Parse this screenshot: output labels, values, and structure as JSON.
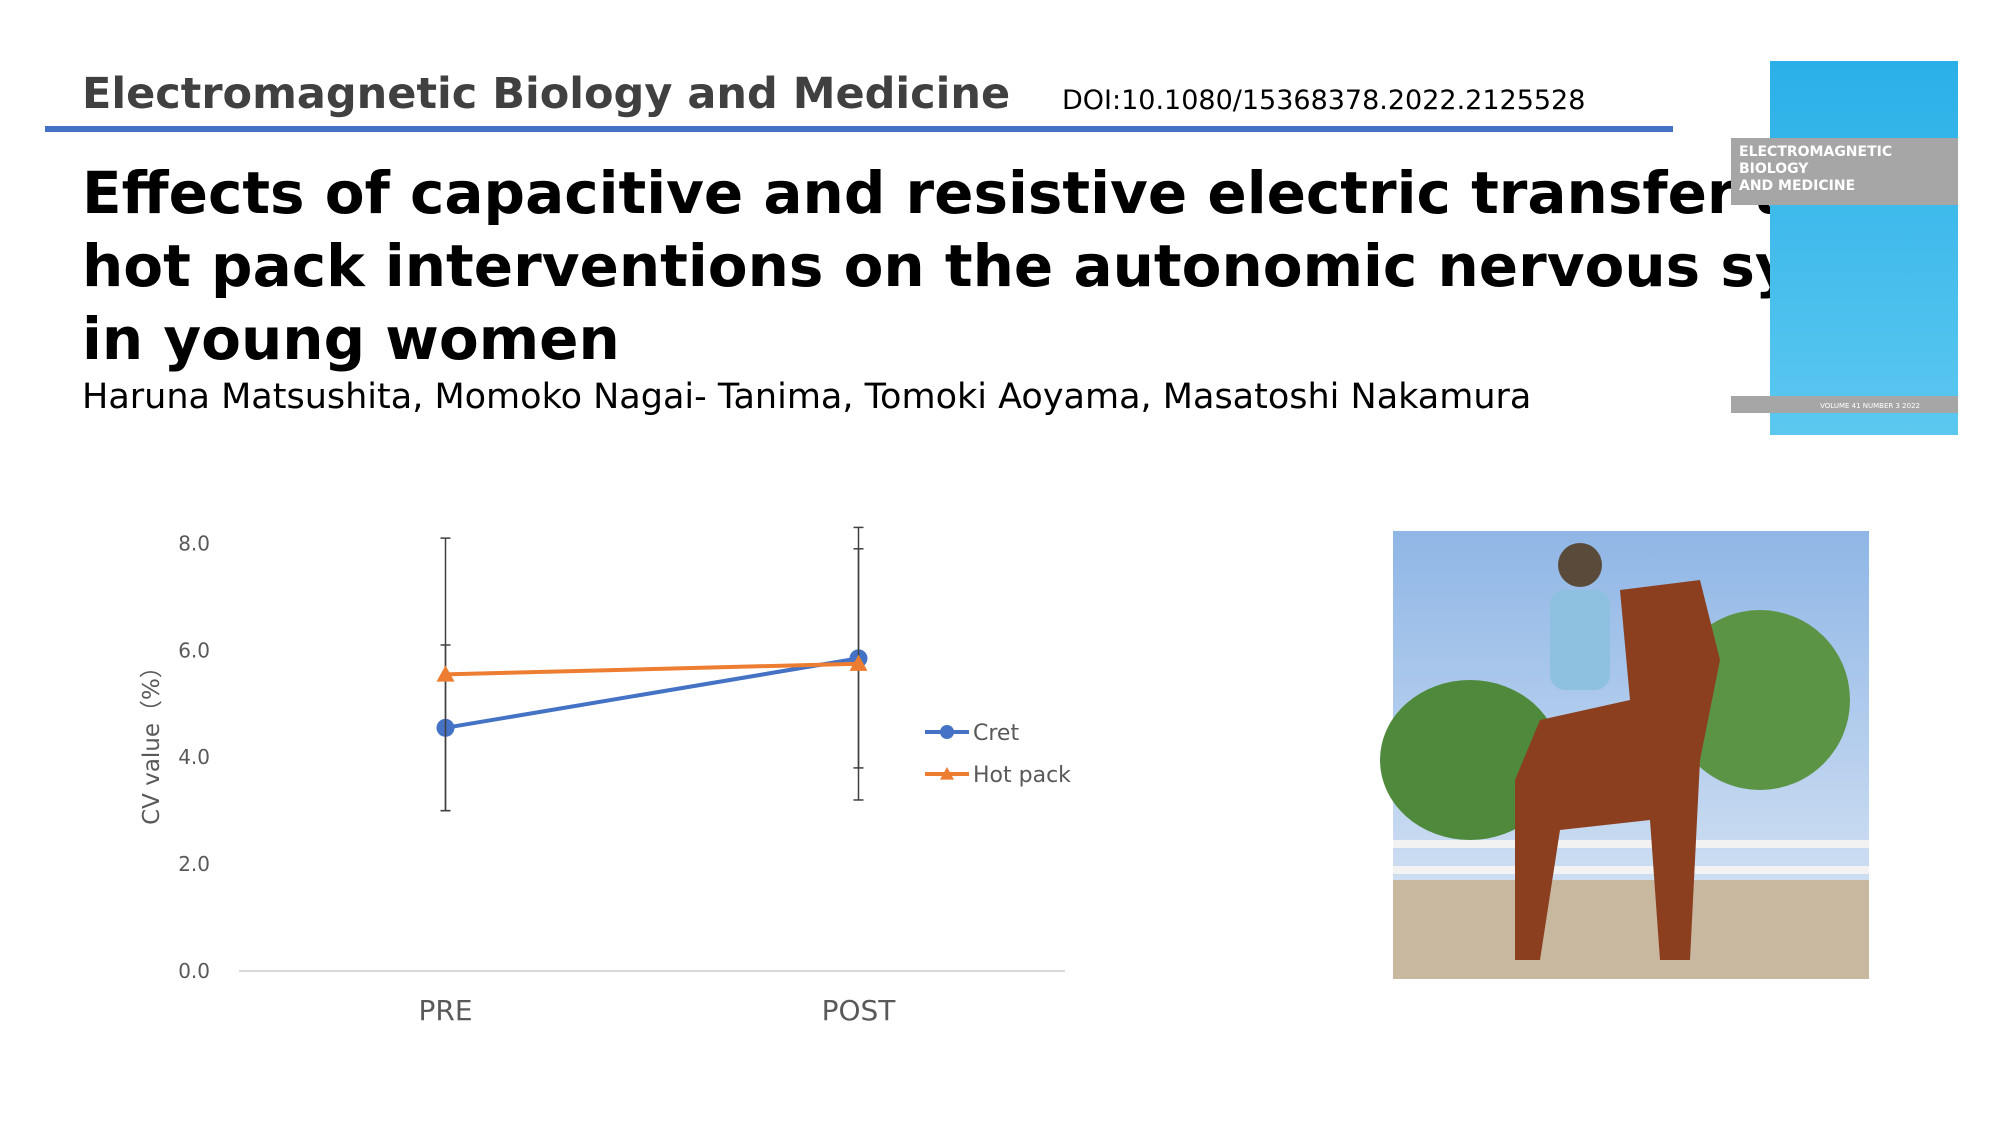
{
  "header": {
    "journal": "Electromagnetic Biology and Medicine",
    "doi": "DOI:10.1080/15368378.2022.2125528",
    "title_lines": [
      "Effects of capacitive and resistive electric transfer and",
      "hot pack interventions on the autonomic nervous system",
      "in young women"
    ],
    "authors": "Haruna Matsushita, Momoko Nagai- Tanima, Tomoki Aoyama, Masatoshi Nakamura"
  },
  "cover": {
    "title_lines": [
      "ELECTROMAGNETIC",
      "BIOLOGY",
      "AND MEDICINE"
    ],
    "volume": "VOLUME 41 NUMBER 3 2022"
  },
  "chart_data": {
    "type": "line",
    "y_label": "CV value（%）",
    "categories": [
      "PRE",
      "POST"
    ],
    "series": [
      {
        "name": "Cret",
        "color": "#4472c4",
        "marker": "circle",
        "values": [
          4.55,
          5.85
        ],
        "errors": [
          1.55,
          2.05
        ]
      },
      {
        "name": "Hot pack",
        "color": "#ed7d31",
        "marker": "triangle",
        "values": [
          5.55,
          5.75
        ],
        "errors": [
          2.55,
          2.55
        ]
      }
    ],
    "ylim": [
      0,
      9
    ],
    "yticks": [
      {
        "value": 0,
        "label": "0.0"
      },
      {
        "value": 2,
        "label": "2.0"
      },
      {
        "value": 4,
        "label": "4.0"
      },
      {
        "value": 6,
        "label": "6.0"
      },
      {
        "value": 8,
        "label": "8.0"
      }
    ],
    "grid": false,
    "legend": "right"
  }
}
